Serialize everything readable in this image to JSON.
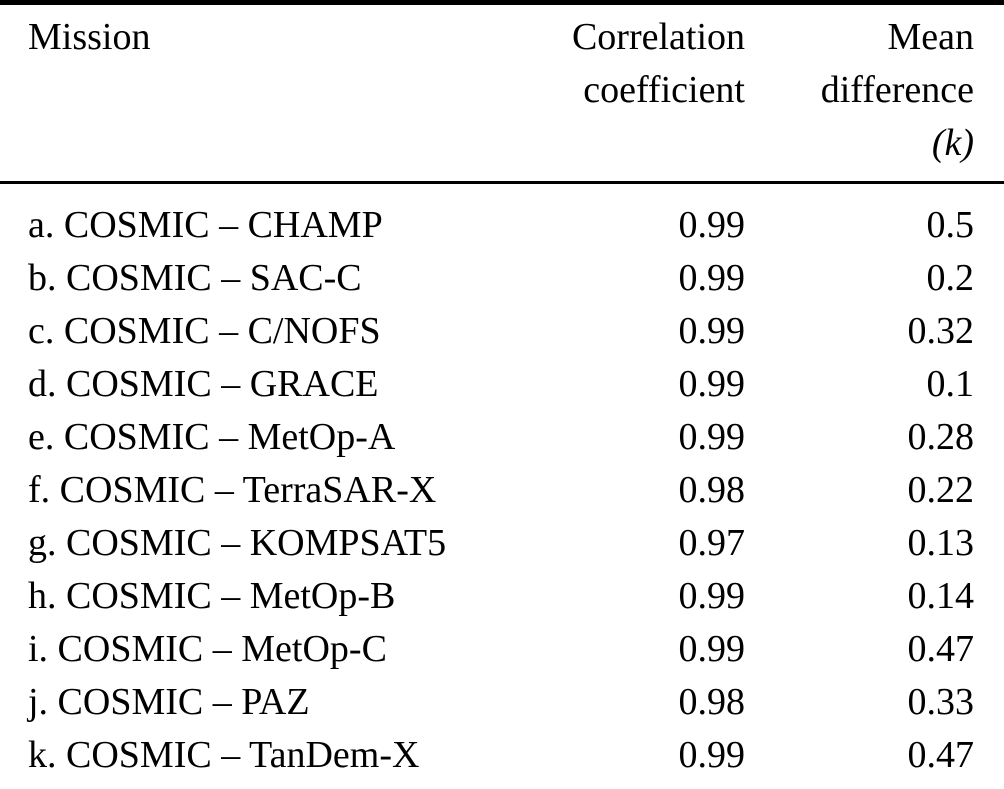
{
  "table": {
    "header": {
      "mission": "Mission",
      "correlation": [
        "Correlation",
        "coefficient"
      ],
      "mean_difference": [
        "Mean",
        "difference",
        "(k)"
      ]
    },
    "rows": [
      {
        "mission": "a. COSMIC – CHAMP",
        "correlation": "0.99",
        "mean_difference": "0.5"
      },
      {
        "mission": "b. COSMIC – SAC-C",
        "correlation": "0.99",
        "mean_difference": "0.2"
      },
      {
        "mission": "c. COSMIC – C/NOFS",
        "correlation": "0.99",
        "mean_difference": "0.32"
      },
      {
        "mission": "d. COSMIC – GRACE",
        "correlation": "0.99",
        "mean_difference": "0.1"
      },
      {
        "mission": "e. COSMIC – MetOp-A",
        "correlation": "0.99",
        "mean_difference": "0.28"
      },
      {
        "mission": "f. COSMIC – TerraSAR-X",
        "correlation": "0.98",
        "mean_difference": "0.22"
      },
      {
        "mission": "g. COSMIC – KOMPSAT5",
        "correlation": "0.97",
        "mean_difference": "0.13"
      },
      {
        "mission": "h. COSMIC – MetOp-B",
        "correlation": "0.99",
        "mean_difference": "0.14"
      },
      {
        "mission": "i. COSMIC – MetOp-C",
        "correlation": "0.99",
        "mean_difference": "0.47"
      },
      {
        "mission": "j. COSMIC – PAZ",
        "correlation": "0.98",
        "mean_difference": "0.33"
      },
      {
        "mission": "k. COSMIC – TanDem-X",
        "correlation": "0.99",
        "mean_difference": "0.47"
      }
    ],
    "colors": {
      "text": "#000000",
      "background": "#ffffff",
      "rule": "#000000"
    }
  }
}
